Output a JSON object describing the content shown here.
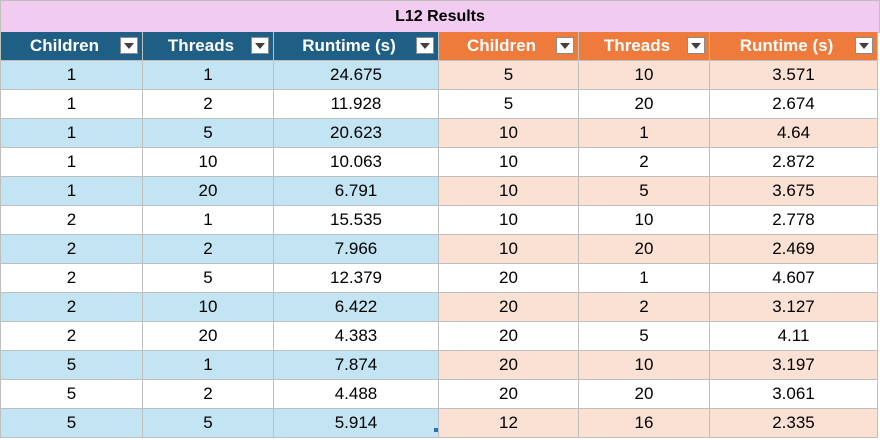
{
  "table": {
    "title": "L12 Results",
    "headers": [
      "Children",
      "Threads",
      "Runtime (s)",
      "Children",
      "Threads",
      "Runtime (s)"
    ],
    "rows": [
      [
        "1",
        "1",
        "24.675",
        "5",
        "10",
        "3.571"
      ],
      [
        "1",
        "2",
        "11.928",
        "5",
        "20",
        "2.674"
      ],
      [
        "1",
        "5",
        "20.623",
        "10",
        "1",
        "4.64"
      ],
      [
        "1",
        "10",
        "10.063",
        "10",
        "2",
        "2.872"
      ],
      [
        "1",
        "20",
        "6.791",
        "10",
        "5",
        "3.675"
      ],
      [
        "2",
        "1",
        "15.535",
        "10",
        "10",
        "2.778"
      ],
      [
        "2",
        "2",
        "7.966",
        "10",
        "20",
        "2.469"
      ],
      [
        "2",
        "5",
        "12.379",
        "20",
        "1",
        "4.607"
      ],
      [
        "2",
        "10",
        "6.422",
        "20",
        "2",
        "3.127"
      ],
      [
        "2",
        "20",
        "4.383",
        "20",
        "5",
        "4.11"
      ],
      [
        "5",
        "1",
        "7.874",
        "20",
        "10",
        "3.197"
      ],
      [
        "5",
        "2",
        "4.488",
        "20",
        "20",
        "3.061"
      ],
      [
        "5",
        "5",
        "5.914",
        "12",
        "16",
        "2.335"
      ]
    ]
  },
  "icons": {
    "filter": "chevron-down-icon"
  },
  "colors": {
    "title_bg": "#f2ccf0",
    "left_header_bg": "#1f5f85",
    "right_header_bg": "#ee7a3c",
    "left_band": "#c2e4f3",
    "right_band": "#fbe1d4"
  }
}
